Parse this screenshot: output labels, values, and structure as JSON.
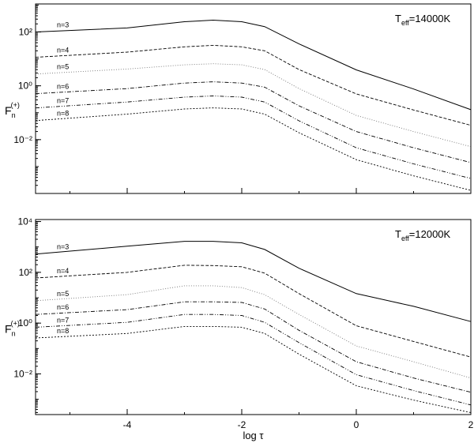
{
  "chart_data": [
    {
      "type": "line",
      "log_y": true,
      "show_xtick_labels": false,
      "annotation": {
        "symbol": "T",
        "subscript": "eff",
        "text": "=14000K"
      },
      "ylabel": {
        "symbol": "F",
        "subscript": "n",
        "superscript": "(+)"
      },
      "x": [
        -5.6,
        -4,
        -3,
        -2.5,
        -2,
        -1.6,
        -1,
        0,
        1,
        2
      ],
      "xlim": [
        -5.6,
        2
      ],
      "xticks": [
        -4,
        -2,
        0,
        2
      ],
      "ylim": [
        0.0001,
        1100
      ],
      "yticks": [
        {
          "value": 0.01,
          "label": "10⁻²"
        },
        {
          "value": 1,
          "label": "10⁰"
        },
        {
          "value": 100,
          "label": "10²"
        }
      ],
      "series": [
        {
          "name": "n=3",
          "color": "#000000",
          "style": "solid",
          "values": [
            100,
            141,
            240,
            275,
            240,
            158,
            36,
            3.9,
            0.76,
            0.13
          ]
        },
        {
          "name": "n=4",
          "color": "#000000",
          "style": "dash",
          "values": [
            11.5,
            17.8,
            28,
            32,
            28,
            20,
            4.0,
            0.5,
            0.126,
            0.034
          ]
        },
        {
          "name": "n=5",
          "color": "#777777",
          "style": "dot",
          "values": [
            2.75,
            4.2,
            6.0,
            6.6,
            6.0,
            4.0,
            0.79,
            0.079,
            0.02,
            0.0055
          ]
        },
        {
          "name": "n=6",
          "color": "#000000",
          "style": "dashdot",
          "values": [
            0.51,
            0.79,
            1.26,
            1.41,
            1.26,
            0.89,
            0.18,
            0.02,
            0.005,
            0.0014
          ]
        },
        {
          "name": "n=7",
          "color": "#000000",
          "style": "dashdotdot",
          "values": [
            0.15,
            0.25,
            0.38,
            0.42,
            0.38,
            0.25,
            0.05,
            0.005,
            0.00126,
            0.00036
          ]
        },
        {
          "name": "n=8",
          "color": "#000000",
          "style": "shortdash",
          "values": [
            0.051,
            0.089,
            0.138,
            0.151,
            0.138,
            0.089,
            0.018,
            0.0018,
            0.00045,
            0.00013
          ]
        }
      ]
    },
    {
      "type": "line",
      "log_y": true,
      "show_xtick_labels": true,
      "xlabel": "log τ",
      "annotation": {
        "symbol": "T",
        "subscript": "eff",
        "text": "=12000K"
      },
      "ylabel": {
        "symbol": "F",
        "subscript": "n",
        "superscript": "(+)"
      },
      "x": [
        -5.6,
        -4,
        -3,
        -2.5,
        -2,
        -1.6,
        -1,
        0,
        1,
        2
      ],
      "xlim": [
        -5.6,
        2
      ],
      "xticks": [
        -4,
        -2,
        0,
        2
      ],
      "ylim": [
        0.00025,
        12000
      ],
      "yticks": [
        {
          "value": 0.01,
          "label": "10⁻²"
        },
        {
          "value": 1,
          "label": "10⁰"
        },
        {
          "value": 100,
          "label": "10²"
        },
        {
          "value": 10000,
          "label": "10⁴"
        }
      ],
      "series": [
        {
          "name": "n=3",
          "color": "#000000",
          "style": "solid",
          "values": [
            525,
            1070,
            1660,
            1660,
            1450,
            794,
            145,
            14.5,
            4.6,
            1.15
          ]
        },
        {
          "name": "n=4",
          "color": "#000000",
          "style": "dash",
          "values": [
            60,
            100,
            190,
            185,
            166,
            93,
            14.5,
            0.79,
            0.19,
            0.046
          ]
        },
        {
          "name": "n=5",
          "color": "#777777",
          "style": "dot",
          "values": [
            7.6,
            13.2,
            29.5,
            29.5,
            25,
            13.2,
            2.2,
            0.126,
            0.03,
            0.0069
          ]
        },
        {
          "name": "n=6",
          "color": "#000000",
          "style": "dashdot",
          "values": [
            2.2,
            3.4,
            6.9,
            6.9,
            6.5,
            3.6,
            0.52,
            0.03,
            0.0069,
            0.0019
          ]
        },
        {
          "name": "n=7",
          "color": "#000000",
          "style": "dashdotdot",
          "values": [
            0.69,
            1.07,
            2.2,
            2.2,
            2.0,
            1.07,
            0.17,
            0.0093,
            0.0022,
            0.0006
          ]
        },
        {
          "name": "n=8",
          "color": "#000000",
          "style": "shortdash",
          "values": [
            0.26,
            0.39,
            0.74,
            0.74,
            0.69,
            0.39,
            0.06,
            0.0034,
            0.00093,
            0.0003
          ]
        }
      ]
    }
  ]
}
